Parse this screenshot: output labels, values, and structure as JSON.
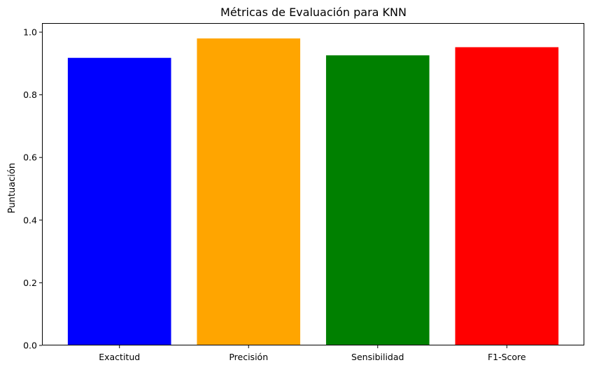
{
  "chart_data": {
    "type": "bar",
    "title": "Métricas de Evaluación para KNN",
    "xlabel": "",
    "ylabel": "Puntuación",
    "categories": [
      "Exactitud",
      "Precisión",
      "Sensibilidad",
      "F1-Score"
    ],
    "values": [
      0.918,
      0.98,
      0.926,
      0.952
    ],
    "colors": [
      "#0000ff",
      "#ffa500",
      "#008000",
      "#ff0000"
    ],
    "ylim": [
      0,
      1.029
    ],
    "yticks": [
      0.0,
      0.2,
      0.4,
      0.6,
      0.8,
      1.0
    ],
    "ytick_labels": [
      "0.0",
      "0.2",
      "0.4",
      "0.6",
      "0.8",
      "1.0"
    ],
    "grid": false,
    "legend": "none"
  }
}
